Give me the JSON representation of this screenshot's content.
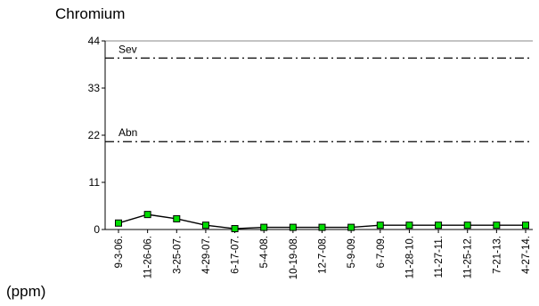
{
  "chart_data": {
    "type": "line",
    "title": "Chromium",
    "ylabel": "(ppm)",
    "xlabel": "",
    "ylim": [
      0,
      44
    ],
    "yticks": [
      0,
      11,
      22,
      33,
      44
    ],
    "grid": false,
    "categories": [
      "9-3-06",
      "11-26-06",
      "3-25-07",
      "4-29-07",
      "6-17-07",
      "5-4-08",
      "10-19-08",
      "12-7-08",
      "5-9-09",
      "6-7-09",
      "11-28-10",
      "11-27-11",
      "11-25-12",
      "7-21-13",
      "4-27-14"
    ],
    "tick_labels": [
      "9-3-06.",
      "11-26-06.",
      "3-25-07.",
      "4-29-07.",
      "6-17-07.",
      "5-4-08.",
      "10-19-08.",
      "12-7-08.",
      "5-9-09.",
      "6-7-09.",
      "11-28-10.",
      "11-27-11.",
      "11-25-12.",
      "7-21-13.",
      "4-27-14."
    ],
    "series": [
      {
        "values": [
          1.5,
          3.5,
          2.5,
          1.0,
          0.2,
          0.5,
          0.5,
          0.5,
          0.5,
          1.0,
          1.0,
          1.0,
          1.0,
          1.0,
          1.0
        ]
      }
    ],
    "thresholds": [
      {
        "label": "Sev",
        "value": 40
      },
      {
        "label": "Abn",
        "value": 20.5
      }
    ],
    "colors": {
      "marker_fill": "#00dd00",
      "marker_stroke": "#000000",
      "line": "#000000",
      "axis": "#000000",
      "top_border": "#888888"
    }
  }
}
